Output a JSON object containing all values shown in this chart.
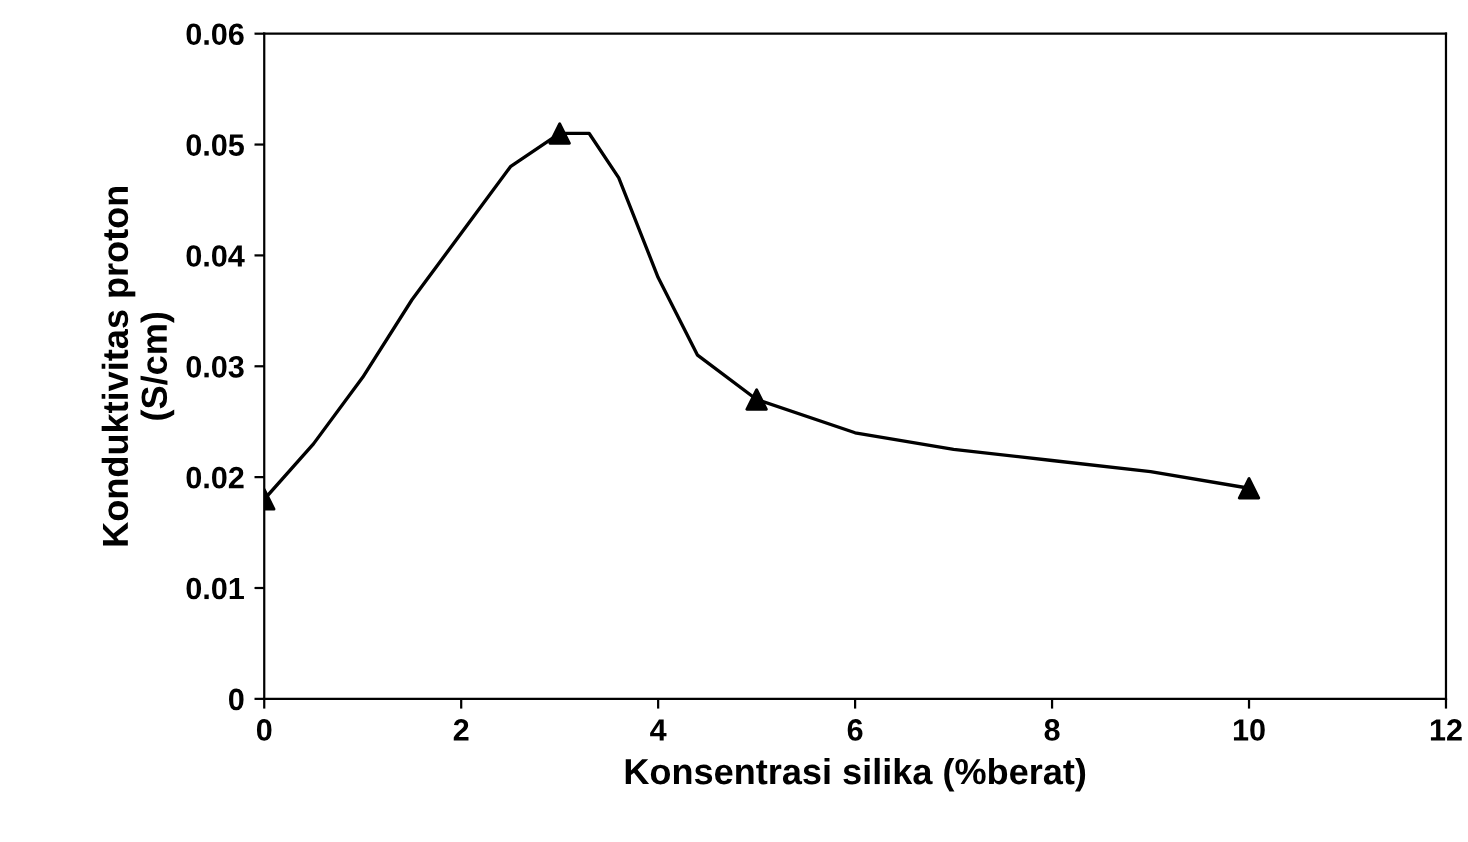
{
  "chart_data": {
    "type": "line",
    "xlabel": "Konsentrasi silika (%berat)",
    "ylabel": "Konduktivitas proton\n(S/cm)",
    "x": [
      0,
      3,
      5,
      10
    ],
    "series": [
      {
        "color": "#000000",
        "marker": "none",
        "x": [
          0,
          0.5,
          1,
          1.5,
          2,
          2.5,
          3,
          3.3,
          3.6,
          4,
          4.4,
          5,
          6,
          7,
          8,
          9,
          10
        ],
        "values": [
          0.018,
          0.023,
          0.029,
          0.036,
          0.042,
          0.048,
          0.051,
          0.051,
          0.047,
          0.038,
          0.031,
          0.027,
          0.024,
          0.0225,
          0.0215,
          0.0205,
          0.019
        ]
      },
      {
        "type": "scatter",
        "marker": "triangle",
        "color": "#000000",
        "values": [
          0.018,
          0.051,
          0.027,
          0.019
        ]
      }
    ],
    "line_style": "solid",
    "grid": false,
    "legend": false,
    "xlim": [
      0,
      12
    ],
    "xticks": [
      0,
      2,
      4,
      6,
      8,
      10,
      12
    ],
    "ylim": [
      0,
      0.06
    ],
    "yticks": [
      {
        "value": 0,
        "label": "0"
      },
      0.01,
      0.02,
      0.03,
      0.04,
      0.05,
      0.06
    ]
  }
}
